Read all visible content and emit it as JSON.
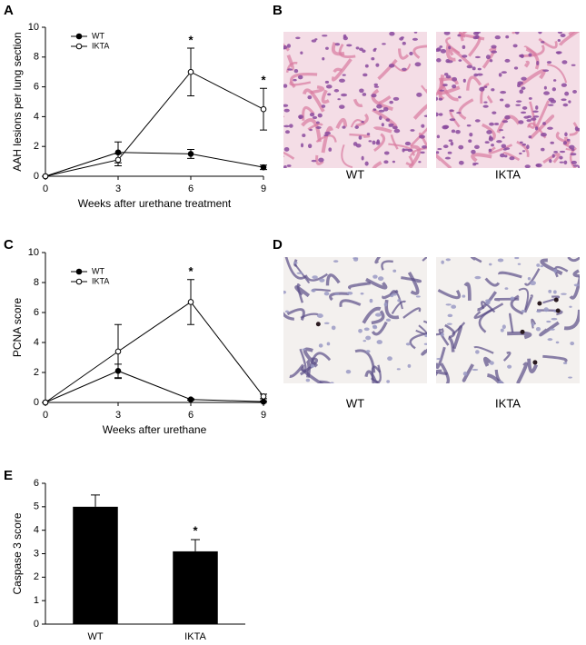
{
  "chart_data": [
    {
      "type": "line",
      "panel": "A",
      "xlabel": "Weeks after urethane treatment",
      "ylabel": "AAH lesions per lung section",
      "x": [
        0,
        3,
        6,
        9
      ],
      "xlim": [
        0,
        9
      ],
      "xticks": [
        0,
        3,
        6,
        9
      ],
      "ylim": [
        0,
        10
      ],
      "yticks": [
        0,
        2,
        4,
        6,
        8,
        10
      ],
      "series": [
        {
          "name": "WT",
          "color": "#000000",
          "marker": "filled",
          "values": [
            0,
            1.6,
            1.5,
            0.6
          ],
          "errors": [
            0,
            0.7,
            0.3,
            0.15
          ]
        },
        {
          "name": "IKTA",
          "color": "#000000",
          "marker": "open",
          "values": [
            0,
            1.1,
            7.0,
            4.5
          ],
          "errors": [
            0,
            0.4,
            1.6,
            1.4
          ]
        }
      ],
      "annotations": [
        null,
        null,
        "*",
        "*"
      ],
      "legend": "upper left"
    },
    {
      "type": "line",
      "panel": "C",
      "xlabel": "Weeks after urethane",
      "ylabel": "PCNA score",
      "x": [
        0,
        3,
        6,
        9
      ],
      "xlim": [
        0,
        9
      ],
      "xticks": [
        0,
        3,
        6,
        9
      ],
      "ylim": [
        0,
        10
      ],
      "yticks": [
        0,
        2,
        4,
        6,
        8,
        10
      ],
      "series": [
        {
          "name": "WT",
          "color": "#000000",
          "marker": "filled",
          "values": [
            0,
            2.1,
            0.2,
            0.05
          ],
          "errors": [
            0,
            0.45,
            0.05,
            0.05
          ]
        },
        {
          "name": "IKTA",
          "color": "#000000",
          "marker": "open",
          "values": [
            0,
            3.4,
            6.7,
            0.4
          ],
          "errors": [
            0,
            1.8,
            1.5,
            0.15
          ]
        }
      ],
      "annotations": [
        null,
        null,
        "*",
        null
      ],
      "legend": "upper left"
    },
    {
      "type": "bar",
      "panel": "E",
      "ylabel": "Caspase 3 score",
      "categories": [
        "WT",
        "IKTA"
      ],
      "values": [
        5.0,
        3.1
      ],
      "errors": [
        0.5,
        0.5
      ],
      "color": "#000000",
      "ylim": [
        0,
        6
      ],
      "yticks": [
        0,
        1,
        2,
        3,
        4,
        5,
        6
      ],
      "annotations": [
        null,
        "*"
      ]
    }
  ],
  "images": [
    {
      "panel": "B",
      "captions": [
        "WT",
        "IKTA"
      ]
    },
    {
      "panel": "D",
      "captions": [
        "WT",
        "IKTA"
      ]
    }
  ]
}
